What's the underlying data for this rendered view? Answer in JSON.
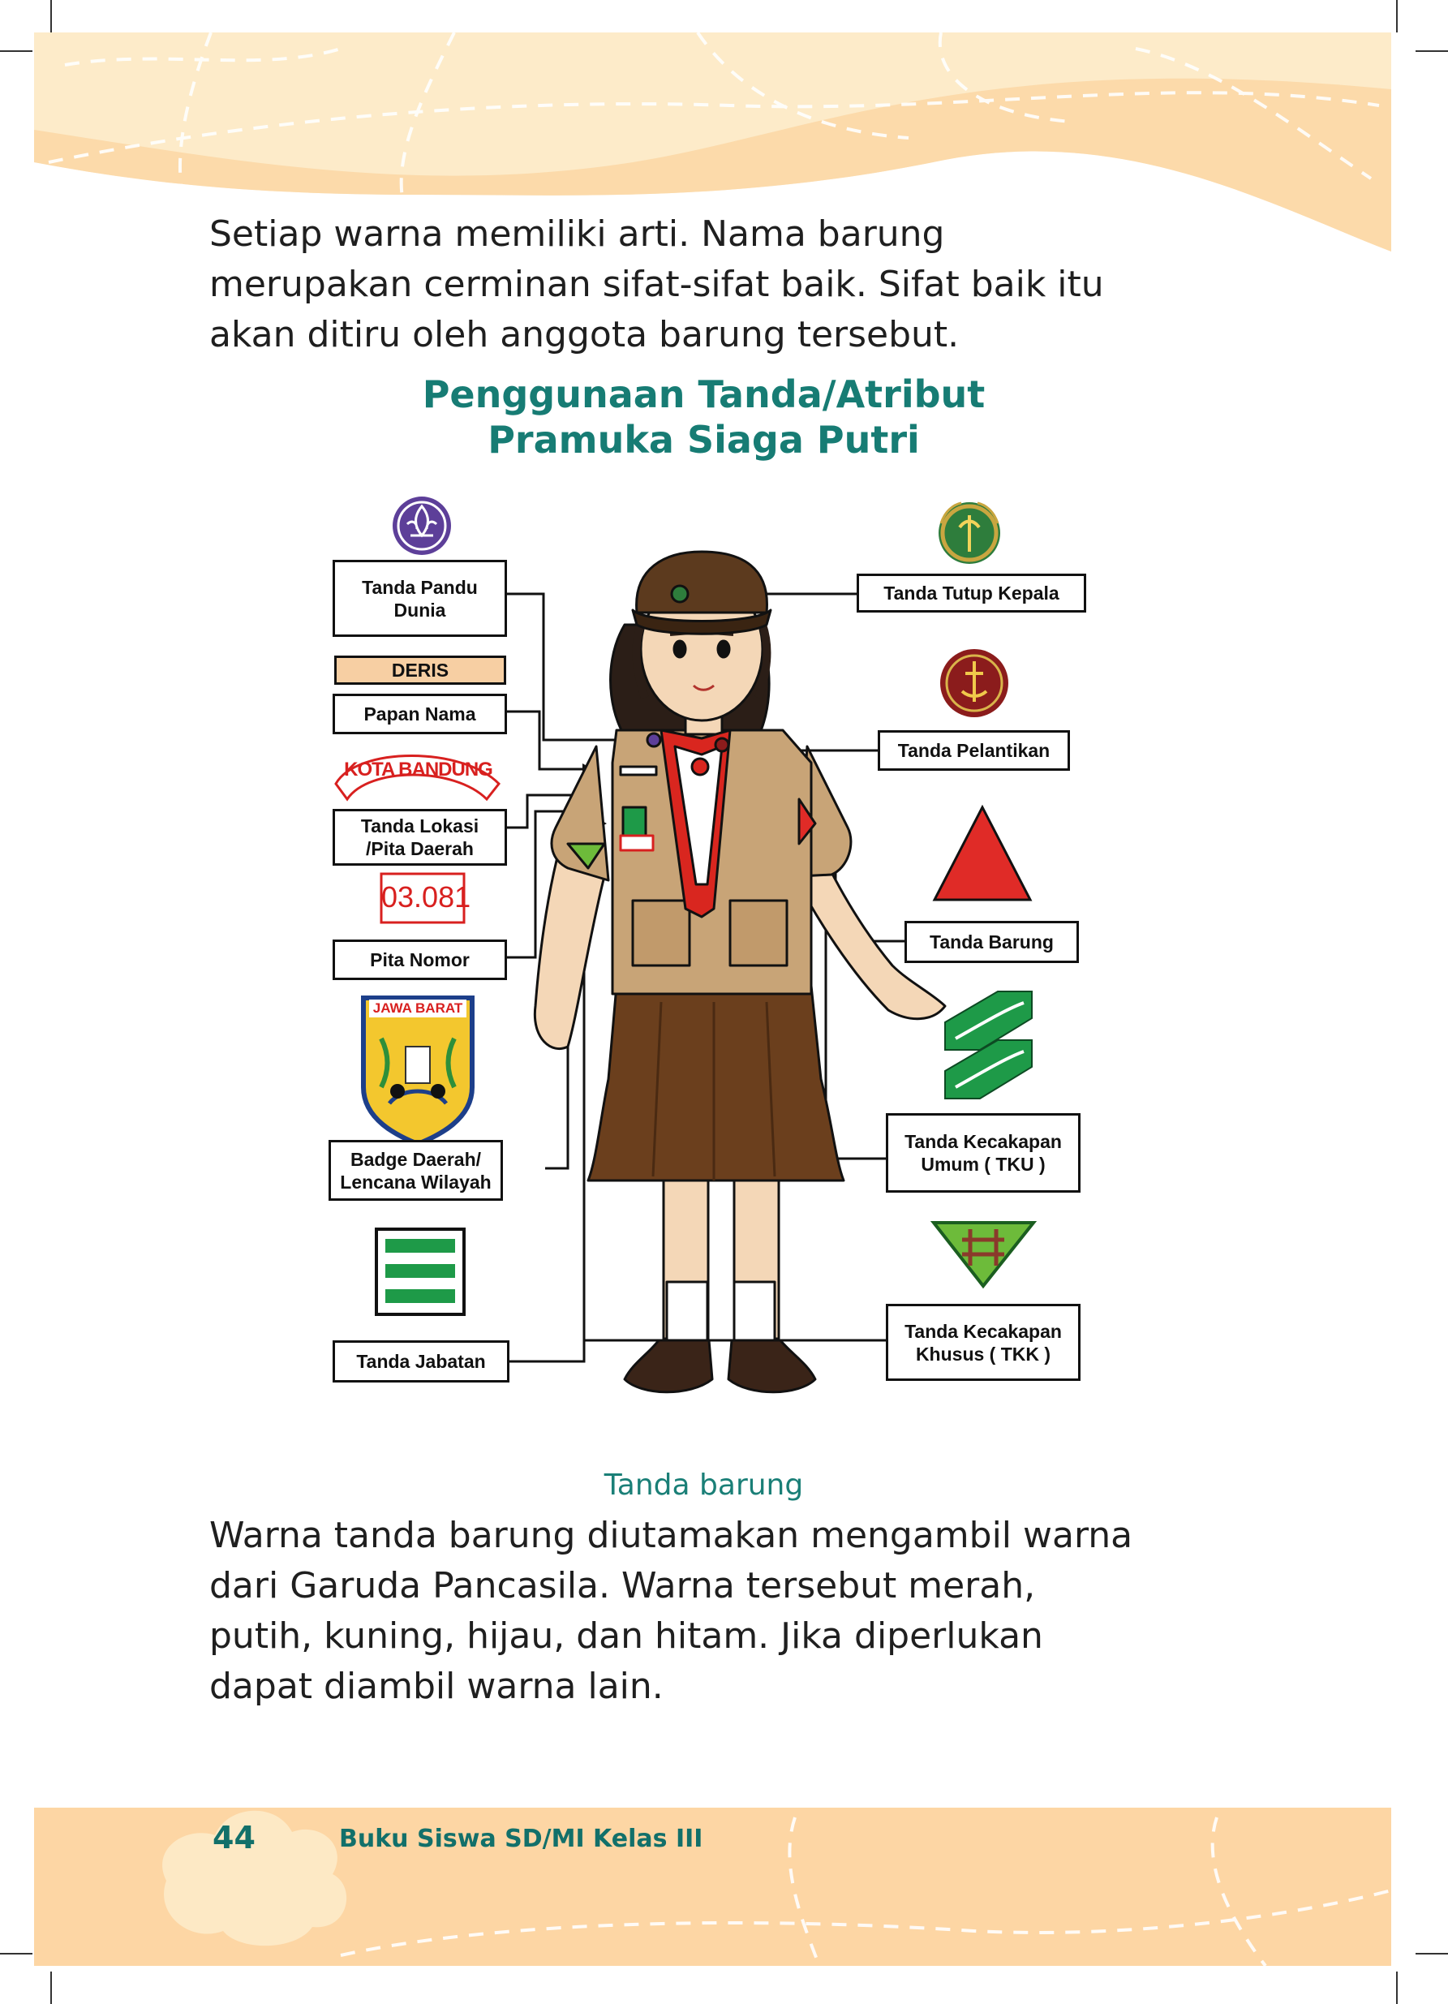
{
  "intro": {
    "lines": [
      "Setiap warna memiliki arti. Nama barung",
      "merupakan cerminan sifat-sifat baik. Sifat baik itu",
      "akan ditiru oleh anggota barung tersebut."
    ]
  },
  "heading": {
    "line1": "Penggunaan Tanda/Atribut",
    "line2": "Pramuka Siaga Putri"
  },
  "labels": {
    "pandu_dunia": "Tanda Pandu\nDunia",
    "deris": "DERIS",
    "papan_nama": "Papan Nama",
    "kota": "KOTA BANDUNG",
    "lokasi": "Tanda Lokasi\n/Pita Daerah",
    "nomor_badge": "03.081",
    "pita_nomor": "Pita Nomor",
    "jawa_barat": "JAWA BARAT",
    "badge_daerah": "Badge Daerah/\nLencana Wilayah",
    "jabatan": "Tanda Jabatan",
    "tutup_kepala": "Tanda Tutup Kepala",
    "pelantikan": "Tanda Pelantikan",
    "barung": "Tanda Barung",
    "tku": "Tanda Kecakapan\nUmum ( TKU )",
    "tkk": "Tanda Kecakapan\nKhusus ( TKK )"
  },
  "caption": "Tanda barung",
  "body": {
    "lines": [
      "Warna tanda barung diutamakan mengambil warna",
      "dari Garuda Pancasila. Warna tersebut merah,",
      "putih, kuning, hijau, dan hitam. Jika diperlukan",
      "dapat diambil warna lain."
    ]
  },
  "footer": {
    "page_number": "44",
    "book_title": "Buku Siswa SD/MI Kelas III"
  },
  "colors": {
    "heading_teal": "#177c74",
    "header_band": "#fce8c6",
    "footer_band": "#fdd6a4",
    "barung_red": "#e02b27",
    "tku_green": "#1e9a48"
  }
}
